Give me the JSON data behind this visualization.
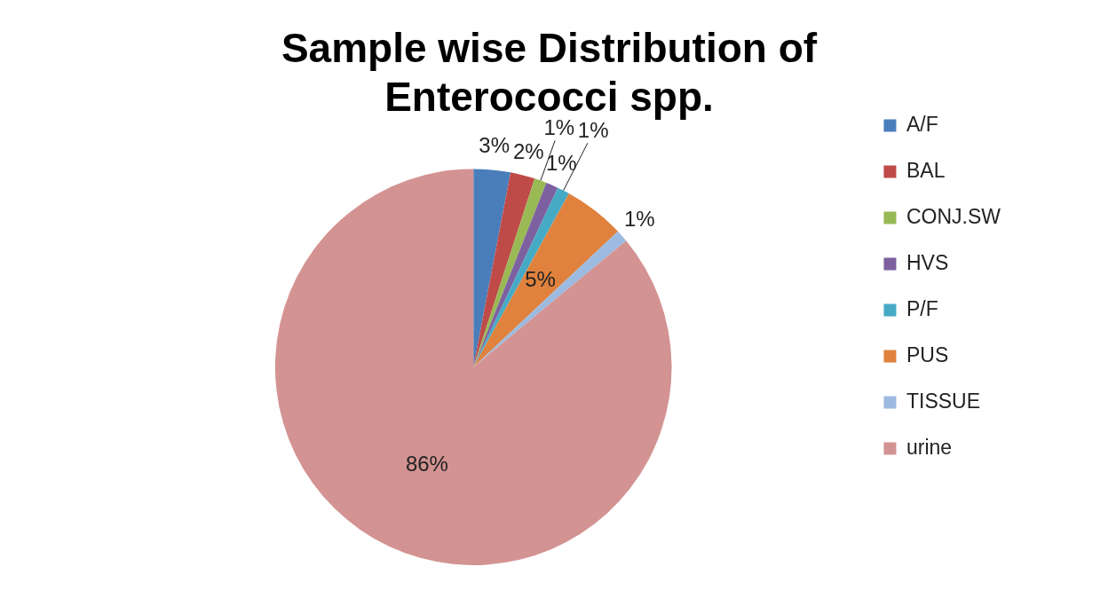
{
  "chart_data": {
    "type": "pie",
    "title": "Sample wise Distribution of Enterococci spp.",
    "categories": [
      "A/F",
      "BAL",
      "CONJ.SW",
      "HVS",
      "P/F",
      "PUS",
      "TISSUE",
      "urine"
    ],
    "values": [
      3,
      2,
      1,
      1,
      1,
      5,
      1,
      86
    ],
    "colors": [
      "#4a7ebb",
      "#be4b48",
      "#98b954",
      "#7d60a0",
      "#46aac5",
      "#e0823d",
      "#9dbae0",
      "#d39392"
    ],
    "value_labels": [
      "3%",
      "2%",
      "1%",
      "1%",
      "1%",
      "5%",
      "1%",
      "86%"
    ],
    "legend": "right"
  }
}
